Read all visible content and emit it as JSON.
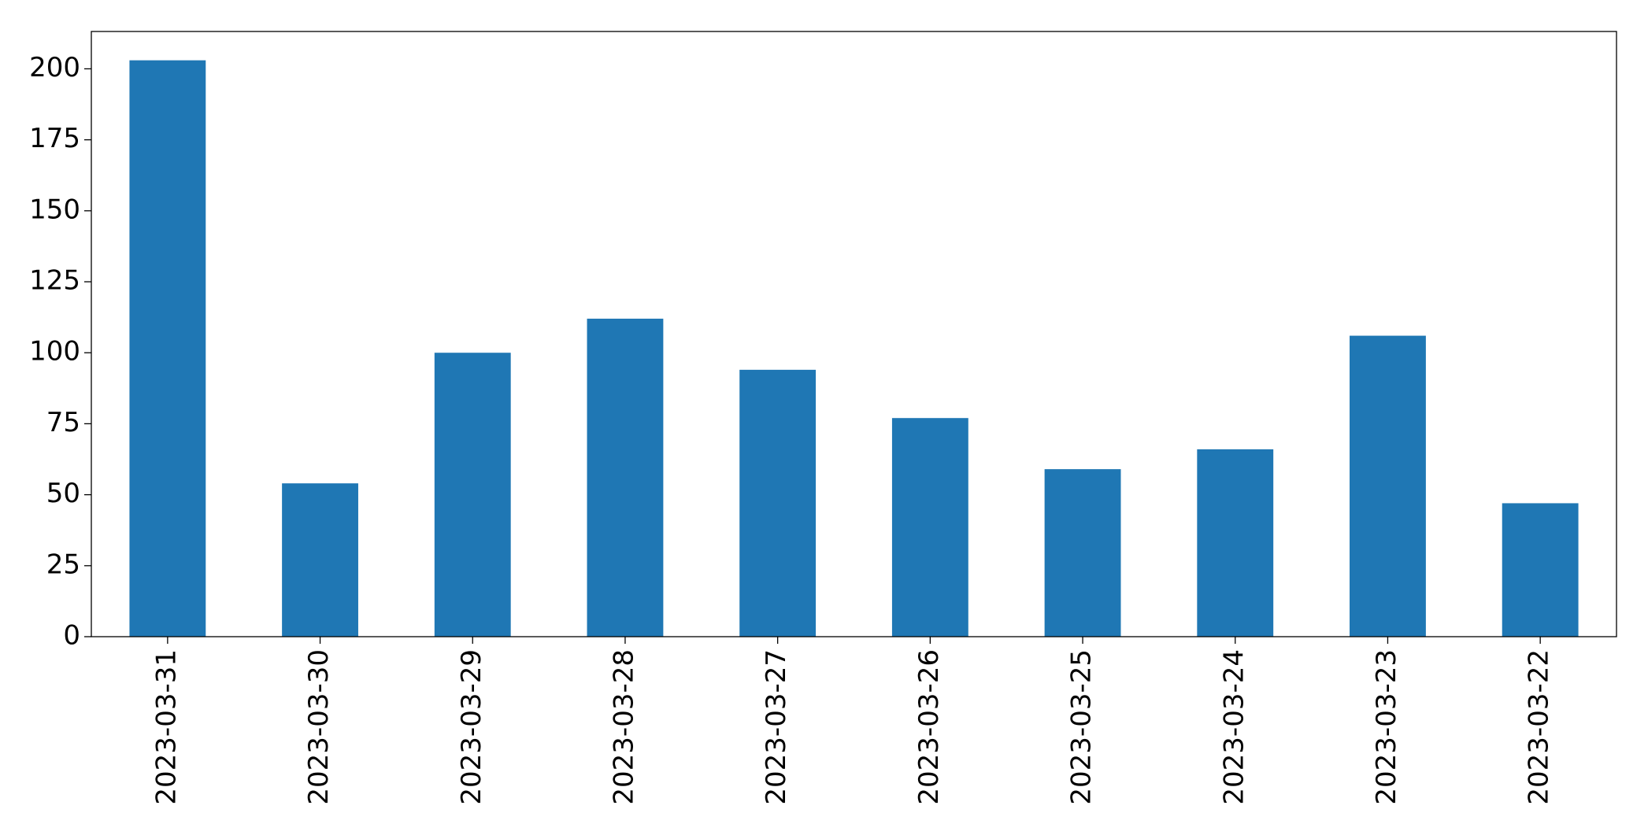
{
  "chart_data": {
    "type": "bar",
    "categories": [
      "2023-03-31",
      "2023-03-30",
      "2023-03-29",
      "2023-03-28",
      "2023-03-27",
      "2023-03-26",
      "2023-03-25",
      "2023-03-24",
      "2023-03-23",
      "2023-03-22"
    ],
    "values": [
      203,
      54,
      100,
      112,
      94,
      77,
      59,
      66,
      106,
      47
    ],
    "color": "#1f77b4",
    "ylim": [
      0,
      213.15
    ],
    "yticks": [
      0,
      25,
      50,
      75,
      100,
      125,
      150,
      175,
      200
    ],
    "grid": false
  }
}
